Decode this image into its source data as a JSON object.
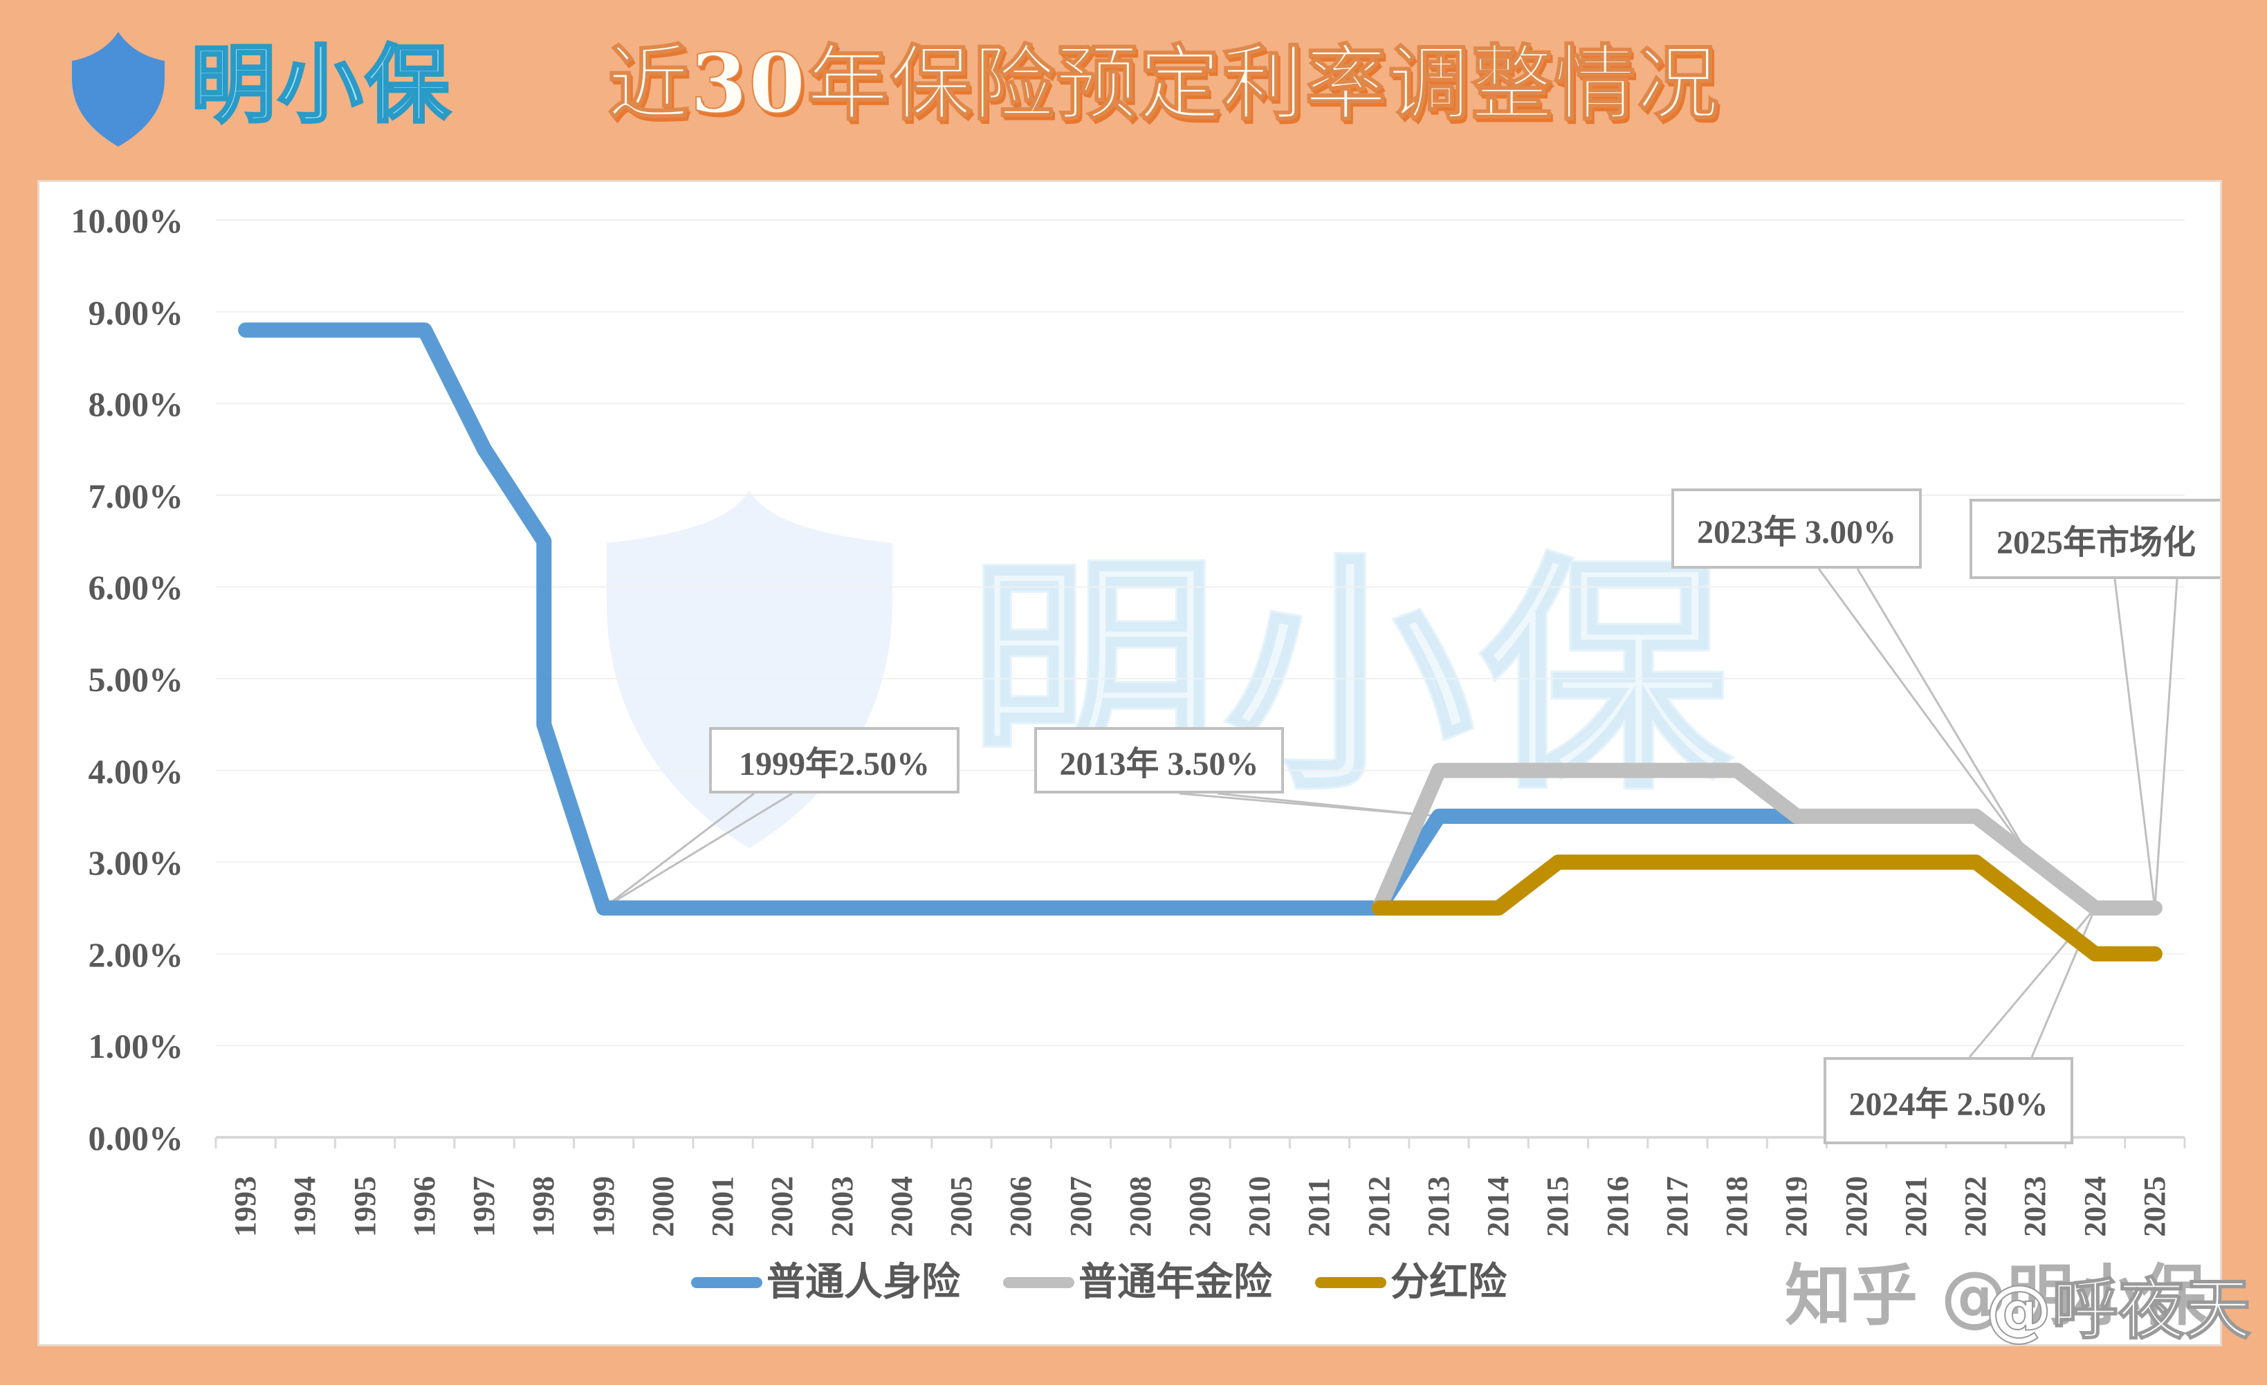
{
  "header": {
    "brand": "明小保",
    "brand_icon": "shield-icon",
    "title": "近30年保险预定利率调整情况"
  },
  "watermarks": {
    "center": "明小保",
    "corner": "知乎 @明小保",
    "corner_overlay": "@呼夜天"
  },
  "colors": {
    "background": "#F3B184",
    "series_1": "#5B9BD5",
    "series_2": "#BFBFBF",
    "series_3": "#BF8F00",
    "axis_text": "#595959"
  },
  "legend": [
    {
      "label": "普通人身险",
      "color": "#5B9BD5"
    },
    {
      "label": "普通年金险",
      "color": "#BFBFBF"
    },
    {
      "label": "分红险",
      "color": "#BF8F00"
    }
  ],
  "annotations": [
    {
      "text": "1999年2.50%",
      "target_year": "1999",
      "target_value": 2.5
    },
    {
      "text": "2013年 3.50%",
      "target_year": "2013",
      "target_value": 3.5
    },
    {
      "text": "2023年 3.00%",
      "target_year": "2023",
      "target_value": 3.0
    },
    {
      "text": "2025年市场化",
      "target_year": "2025",
      "target_value": 2.5
    },
    {
      "text": "2024年 2.50%",
      "target_year": "2024",
      "target_value": 2.5
    }
  ],
  "chart_data": {
    "type": "line",
    "title": "近30年保险预定利率调整情况",
    "xlabel": "",
    "ylabel": "",
    "ylim": [
      0,
      10
    ],
    "y_tick_labels": [
      "0.00%",
      "1.00%",
      "2.00%",
      "3.00%",
      "4.00%",
      "5.00%",
      "6.00%",
      "7.00%",
      "8.00%",
      "9.00%",
      "10.00%"
    ],
    "grid": true,
    "legend_position": "bottom",
    "categories": [
      "1993",
      "1994",
      "1995",
      "1996",
      "1997",
      "1998",
      "1999",
      "2000",
      "2001",
      "2002",
      "2003",
      "2004",
      "2005",
      "2006",
      "2007",
      "2008",
      "2009",
      "2010",
      "2011",
      "2012",
      "2013",
      "2014",
      "2015",
      "2016",
      "2017",
      "2018",
      "2019",
      "2020",
      "2021",
      "2022",
      "2023",
      "2024",
      "2025"
    ],
    "series": [
      {
        "name": "普通人身险",
        "note": "1998 has two points (6.5% then 4.5%) forming a vertical drop; series ends at 2019",
        "points": [
          [
            "1993",
            8.8
          ],
          [
            "1994",
            8.8
          ],
          [
            "1995",
            8.8
          ],
          [
            "1996",
            8.8
          ],
          [
            "1997",
            7.5
          ],
          [
            "1998",
            6.5
          ],
          [
            "1998",
            4.5
          ],
          [
            "1999",
            2.5
          ],
          [
            "2000",
            2.5
          ],
          [
            "2001",
            2.5
          ],
          [
            "2002",
            2.5
          ],
          [
            "2003",
            2.5
          ],
          [
            "2004",
            2.5
          ],
          [
            "2005",
            2.5
          ],
          [
            "2006",
            2.5
          ],
          [
            "2007",
            2.5
          ],
          [
            "2008",
            2.5
          ],
          [
            "2009",
            2.5
          ],
          [
            "2010",
            2.5
          ],
          [
            "2011",
            2.5
          ],
          [
            "2012",
            2.5
          ],
          [
            "2013",
            3.5
          ],
          [
            "2014",
            3.5
          ],
          [
            "2015",
            3.5
          ],
          [
            "2016",
            3.5
          ],
          [
            "2017",
            3.5
          ],
          [
            "2018",
            3.5
          ],
          [
            "2019",
            3.5
          ]
        ]
      },
      {
        "name": "普通年金险",
        "points": [
          [
            "2012",
            2.5
          ],
          [
            "2013",
            4.0
          ],
          [
            "2014",
            4.0
          ],
          [
            "2015",
            4.0
          ],
          [
            "2016",
            4.0
          ],
          [
            "2017",
            4.0
          ],
          [
            "2018",
            4.0
          ],
          [
            "2019",
            3.5
          ],
          [
            "2020",
            3.5
          ],
          [
            "2021",
            3.5
          ],
          [
            "2022",
            3.5
          ],
          [
            "2023",
            3.0
          ],
          [
            "2024",
            2.5
          ],
          [
            "2025",
            2.5
          ]
        ]
      },
      {
        "name": "分红险",
        "points": [
          [
            "2012",
            2.5
          ],
          [
            "2013",
            2.5
          ],
          [
            "2014",
            2.5
          ],
          [
            "2015",
            3.0
          ],
          [
            "2016",
            3.0
          ],
          [
            "2017",
            3.0
          ],
          [
            "2018",
            3.0
          ],
          [
            "2019",
            3.0
          ],
          [
            "2020",
            3.0
          ],
          [
            "2021",
            3.0
          ],
          [
            "2022",
            3.0
          ],
          [
            "2023",
            2.5
          ],
          [
            "2024",
            2.0
          ],
          [
            "2025",
            2.0
          ]
        ]
      }
    ]
  }
}
